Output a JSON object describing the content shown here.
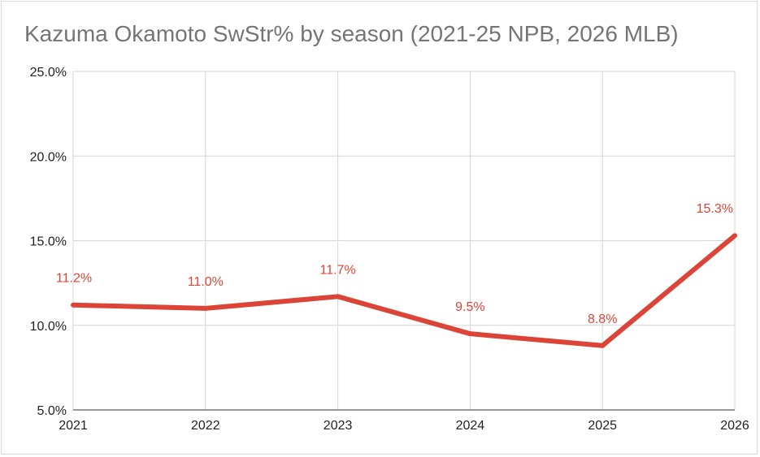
{
  "chart_data": {
    "type": "line",
    "title": "Kazuma Okamoto SwStr% by season (2021-25 NPB, 2026 MLB)",
    "xlabel": "",
    "ylabel": "",
    "categories": [
      "2021",
      "2022",
      "2023",
      "2024",
      "2025",
      "2026"
    ],
    "series": [
      {
        "name": "SwStr%",
        "values": [
          11.2,
          11.0,
          11.7,
          9.5,
          8.8,
          15.3
        ],
        "labels": [
          "11.2%",
          "11.0%",
          "11.7%",
          "9.5%",
          "8.8%",
          "15.3%"
        ]
      }
    ],
    "ylim": [
      5,
      25
    ],
    "yticks": [
      {
        "value": 5,
        "label": "5.0%"
      },
      {
        "value": 10,
        "label": "10.0%"
      },
      {
        "value": 15,
        "label": "15.0%"
      },
      {
        "value": 20,
        "label": "20.0%"
      },
      {
        "value": 25,
        "label": "25.0%"
      }
    ],
    "grid": true,
    "line_color": "#db4437"
  }
}
